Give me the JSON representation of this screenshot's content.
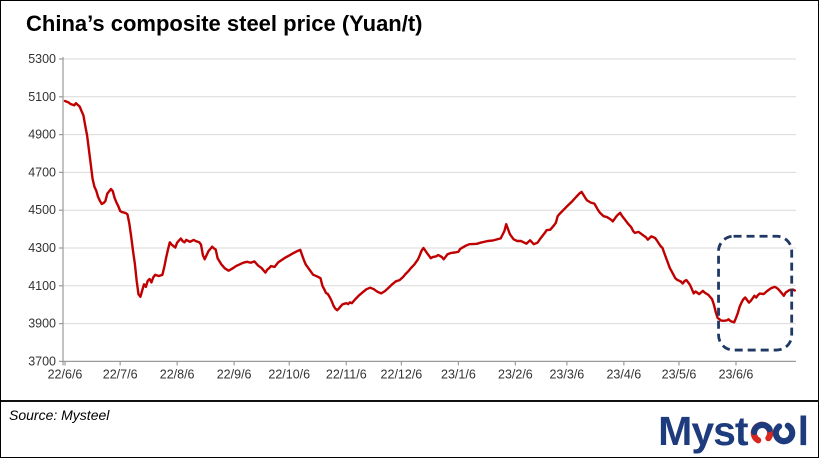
{
  "title": "China’s composite steel price (Yuan/t)",
  "source_label": "Source: Mysteel",
  "logo": {
    "text": "Mysteel",
    "prefix": "Myst",
    "suffix": "l",
    "navy": "#1d3b7d",
    "red": "#d6281e"
  },
  "colors": {
    "line": "#c00000",
    "gridline": "#d9d9d9",
    "axis": "#9a9a9a",
    "tick_label": "#333333",
    "highlight_box": "#1f3864",
    "background": "#ffffff"
  },
  "chart_data": {
    "type": "line",
    "title": "China’s composite steel price (Yuan/t)",
    "series_name": "China composite steel price",
    "unit": "Yuan/t",
    "xlabel": "",
    "ylabel": "",
    "ylim": [
      3700,
      5300
    ],
    "y_ticks": [
      3700,
      3900,
      4100,
      4300,
      4500,
      4700,
      4900,
      5100,
      5300
    ],
    "x_start_date": "2022-06-06",
    "x_unit": "days since 2022-06-06",
    "x_tick_labels": [
      "22/6/6",
      "22/7/6",
      "22/8/6",
      "22/9/6",
      "22/10/6",
      "22/11/6",
      "22/12/6",
      "23/1/6",
      "23/2/6",
      "23/3/6",
      "23/4/6",
      "23/5/6",
      "23/6/6"
    ],
    "x_tick_days": [
      0,
      30,
      61,
      92,
      122,
      153,
      183,
      214,
      245,
      273,
      304,
      334,
      365
    ],
    "grid": "horizontal",
    "legend": "none",
    "line_color": "#c00000",
    "highlight_box": {
      "style": "dashed-rounded",
      "color": "#1f3864",
      "day_start": 355.5,
      "day_end": 395.3,
      "value_top": 4362,
      "value_bottom": 3760
    },
    "points": [
      [
        0,
        5078
      ],
      [
        2,
        5070
      ],
      [
        3,
        5062
      ],
      [
        5,
        5055
      ],
      [
        6,
        5066
      ],
      [
        8,
        5048
      ],
      [
        9,
        5025
      ],
      [
        10,
        5002
      ],
      [
        11,
        4948
      ],
      [
        12,
        4895
      ],
      [
        13,
        4820
      ],
      [
        14,
        4745
      ],
      [
        15,
        4665
      ],
      [
        16,
        4625
      ],
      [
        17,
        4602
      ],
      [
        18,
        4570
      ],
      [
        19,
        4549
      ],
      [
        20,
        4533
      ],
      [
        21,
        4538
      ],
      [
        22,
        4548
      ],
      [
        23,
        4588
      ],
      [
        25,
        4612
      ],
      [
        26,
        4600
      ],
      [
        27,
        4565
      ],
      [
        28,
        4540
      ],
      [
        29,
        4521
      ],
      [
        30,
        4496
      ],
      [
        31,
        4490
      ],
      [
        33,
        4485
      ],
      [
        34,
        4477
      ],
      [
        35,
        4430
      ],
      [
        36,
        4360
      ],
      [
        37,
        4285
      ],
      [
        38,
        4215
      ],
      [
        39,
        4125
      ],
      [
        40,
        4055
      ],
      [
        41,
        4042
      ],
      [
        42,
        4075
      ],
      [
        43,
        4108
      ],
      [
        44,
        4094
      ],
      [
        45,
        4126
      ],
      [
        46,
        4136
      ],
      [
        47,
        4118
      ],
      [
        48,
        4144
      ],
      [
        49,
        4158
      ],
      [
        51,
        4152
      ],
      [
        53,
        4158
      ],
      [
        54,
        4200
      ],
      [
        55,
        4248
      ],
      [
        56,
        4290
      ],
      [
        57,
        4330
      ],
      [
        58,
        4318
      ],
      [
        60,
        4302
      ],
      [
        61,
        4328
      ],
      [
        63,
        4350
      ],
      [
        64,
        4336
      ],
      [
        65,
        4330
      ],
      [
        66,
        4343
      ],
      [
        68,
        4333
      ],
      [
        70,
        4343
      ],
      [
        71,
        4337
      ],
      [
        73,
        4330
      ],
      [
        74,
        4318
      ],
      [
        75,
        4262
      ],
      [
        76,
        4240
      ],
      [
        78,
        4283
      ],
      [
        80,
        4307
      ],
      [
        81,
        4298
      ],
      [
        82,
        4292
      ],
      [
        83,
        4246
      ],
      [
        85,
        4214
      ],
      [
        87,
        4192
      ],
      [
        89,
        4180
      ],
      [
        91,
        4191
      ],
      [
        93,
        4204
      ],
      [
        95,
        4213
      ],
      [
        97,
        4222
      ],
      [
        99,
        4227
      ],
      [
        101,
        4222
      ],
      [
        103,
        4229
      ],
      [
        105,
        4208
      ],
      [
        107,
        4193
      ],
      [
        109,
        4170
      ],
      [
        110,
        4185
      ],
      [
        111,
        4193
      ],
      [
        112,
        4204
      ],
      [
        114,
        4200
      ],
      [
        116,
        4224
      ],
      [
        118,
        4237
      ],
      [
        120,
        4250
      ],
      [
        122,
        4261
      ],
      [
        124,
        4272
      ],
      [
        126,
        4282
      ],
      [
        128,
        4290
      ],
      [
        129,
        4262
      ],
      [
        130,
        4235
      ],
      [
        131,
        4212
      ],
      [
        133,
        4185
      ],
      [
        135,
        4158
      ],
      [
        137,
        4150
      ],
      [
        139,
        4140
      ],
      [
        140,
        4100
      ],
      [
        141,
        4082
      ],
      [
        142,
        4062
      ],
      [
        143,
        4056
      ],
      [
        144,
        4040
      ],
      [
        145,
        4020
      ],
      [
        146,
        3996
      ],
      [
        147,
        3980
      ],
      [
        148,
        3971
      ],
      [
        149,
        3980
      ],
      [
        150,
        3992
      ],
      [
        151,
        4002
      ],
      [
        153,
        4008
      ],
      [
        154,
        4003
      ],
      [
        155,
        4012
      ],
      [
        156,
        4008
      ],
      [
        158,
        4030
      ],
      [
        160,
        4050
      ],
      [
        162,
        4066
      ],
      [
        164,
        4082
      ],
      [
        166,
        4090
      ],
      [
        168,
        4082
      ],
      [
        170,
        4068
      ],
      [
        172,
        4060
      ],
      [
        174,
        4072
      ],
      [
        176,
        4090
      ],
      [
        178,
        4108
      ],
      [
        180,
        4124
      ],
      [
        182,
        4130
      ],
      [
        184,
        4148
      ],
      [
        185,
        4160
      ],
      [
        187,
        4180
      ],
      [
        188,
        4192
      ],
      [
        190,
        4212
      ],
      [
        192,
        4240
      ],
      [
        193,
        4262
      ],
      [
        194,
        4286
      ],
      [
        195,
        4300
      ],
      [
        197,
        4272
      ],
      [
        199,
        4246
      ],
      [
        200,
        4252
      ],
      [
        202,
        4256
      ],
      [
        203,
        4263
      ],
      [
        205,
        4252
      ],
      [
        206,
        4240
      ],
      [
        208,
        4266
      ],
      [
        210,
        4274
      ],
      [
        212,
        4276
      ],
      [
        214,
        4280
      ],
      [
        215,
        4295
      ],
      [
        218,
        4312
      ],
      [
        220,
        4320
      ],
      [
        224,
        4322
      ],
      [
        226,
        4328
      ],
      [
        230,
        4337
      ],
      [
        233,
        4340
      ],
      [
        237,
        4351
      ],
      [
        239,
        4390
      ],
      [
        240,
        4426
      ],
      [
        241,
        4400
      ],
      [
        242,
        4373
      ],
      [
        244,
        4346
      ],
      [
        246,
        4337
      ],
      [
        248,
        4337
      ],
      [
        251,
        4323
      ],
      [
        253,
        4341
      ],
      [
        255,
        4320
      ],
      [
        257,
        4328
      ],
      [
        259,
        4355
      ],
      [
        261,
        4380
      ],
      [
        262,
        4394
      ],
      [
        264,
        4397
      ],
      [
        266,
        4420
      ],
      [
        267,
        4433
      ],
      [
        268,
        4469
      ],
      [
        269,
        4480
      ],
      [
        271,
        4500
      ],
      [
        273,
        4520
      ],
      [
        276,
        4548
      ],
      [
        278,
        4570
      ],
      [
        280,
        4590
      ],
      [
        281,
        4597
      ],
      [
        283,
        4565
      ],
      [
        284,
        4552
      ],
      [
        286,
        4540
      ],
      [
        288,
        4535
      ],
      [
        290,
        4500
      ],
      [
        291,
        4486
      ],
      [
        293,
        4468
      ],
      [
        295,
        4463
      ],
      [
        297,
        4450
      ],
      [
        298,
        4441
      ],
      [
        300,
        4468
      ],
      [
        301,
        4478
      ],
      [
        302,
        4486
      ],
      [
        303,
        4470
      ],
      [
        305,
        4445
      ],
      [
        306,
        4432
      ],
      [
        308,
        4410
      ],
      [
        309,
        4390
      ],
      [
        310,
        4380
      ],
      [
        312,
        4385
      ],
      [
        314,
        4371
      ],
      [
        316,
        4357
      ],
      [
        317,
        4344
      ],
      [
        319,
        4362
      ],
      [
        321,
        4353
      ],
      [
        322,
        4339
      ],
      [
        324,
        4310
      ],
      [
        325,
        4300
      ],
      [
        326,
        4273
      ],
      [
        327,
        4247
      ],
      [
        328,
        4220
      ],
      [
        329,
        4194
      ],
      [
        330,
        4176
      ],
      [
        331,
        4158
      ],
      [
        332,
        4140
      ],
      [
        333,
        4132
      ],
      [
        335,
        4123
      ],
      [
        336,
        4112
      ],
      [
        337,
        4125
      ],
      [
        338,
        4130
      ],
      [
        339,
        4118
      ],
      [
        340,
        4105
      ],
      [
        341,
        4082
      ],
      [
        342,
        4060
      ],
      [
        343,
        4070
      ],
      [
        345,
        4056
      ],
      [
        347,
        4073
      ],
      [
        348,
        4064
      ],
      [
        350,
        4052
      ],
      [
        351,
        4040
      ],
      [
        352,
        4029
      ],
      [
        353,
        4000
      ],
      [
        354,
        3960
      ],
      [
        355,
        3930
      ],
      [
        356,
        3923
      ],
      [
        357,
        3916
      ],
      [
        358,
        3915
      ],
      [
        360,
        3917
      ],
      [
        361,
        3923
      ],
      [
        362,
        3913
      ],
      [
        364,
        3907
      ],
      [
        365,
        3930
      ],
      [
        366,
        3955
      ],
      [
        367,
        3990
      ],
      [
        368,
        4011
      ],
      [
        369,
        4029
      ],
      [
        370,
        4038
      ],
      [
        372,
        4011
      ],
      [
        373,
        4020
      ],
      [
        375,
        4047
      ],
      [
        376,
        4038
      ],
      [
        377,
        4052
      ],
      [
        378,
        4059
      ],
      [
        380,
        4056
      ],
      [
        382,
        4073
      ],
      [
        384,
        4087
      ],
      [
        386,
        4094
      ],
      [
        387,
        4090
      ],
      [
        388,
        4082
      ],
      [
        390,
        4059
      ],
      [
        391,
        4047
      ],
      [
        392,
        4064
      ],
      [
        394,
        4077
      ],
      [
        396,
        4080
      ],
      [
        397,
        4075
      ]
    ]
  }
}
